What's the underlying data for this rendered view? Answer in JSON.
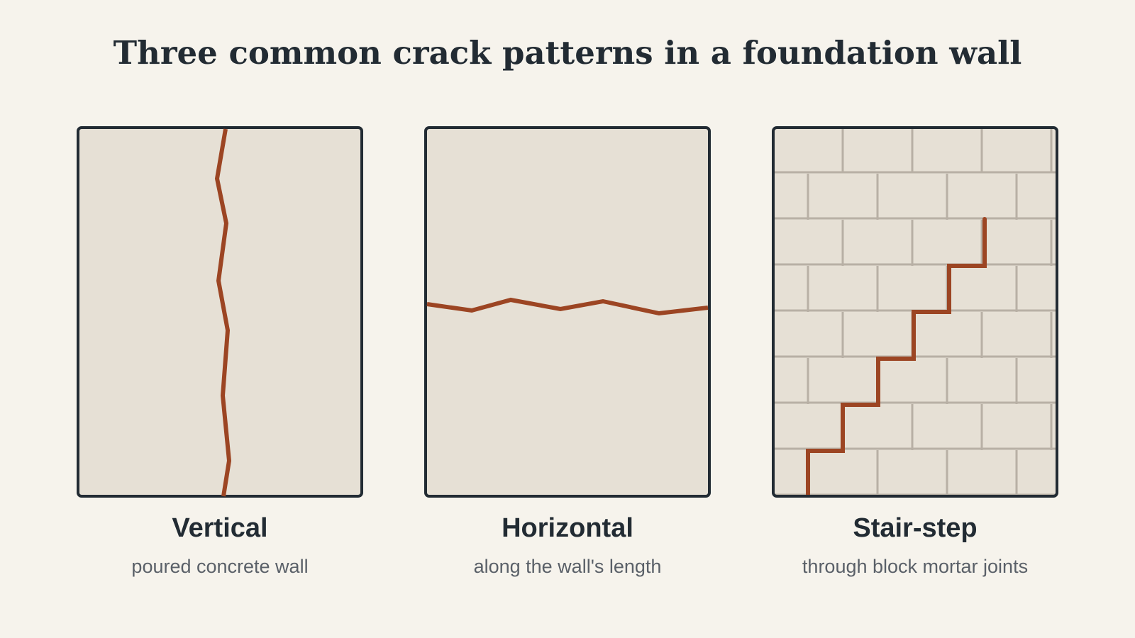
{
  "title": "Three common crack patterns in a foundation wall",
  "colors": {
    "background": "#f6f3ec",
    "wall_fill": "#e6e0d5",
    "wall_border": "#222b33",
    "crack": "#9c4523",
    "mortar": "#b8b0a5"
  },
  "panels": [
    {
      "label": "Vertical",
      "caption": "poured concrete wall"
    },
    {
      "label": "Horizontal",
      "caption": "along the wall's length"
    },
    {
      "label": "Stair-step",
      "caption": "through block mortar joints"
    }
  ]
}
